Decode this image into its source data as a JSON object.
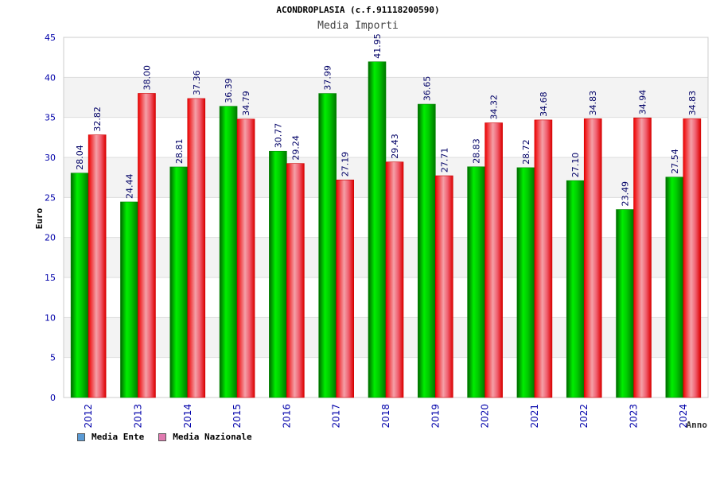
{
  "chart_data": {
    "type": "bar",
    "title": "ACONDROPLASIA (c.f.91118200590)",
    "subtitle": "Media Importi",
    "xlabel": "Anno",
    "ylabel": "Euro",
    "ylim": [
      0,
      45
    ],
    "yticks": [
      0,
      5,
      10,
      15,
      20,
      25,
      30,
      35,
      40,
      45
    ],
    "grid": true,
    "legend_position": "bottom-left",
    "categories": [
      "2012",
      "2013",
      "2014",
      "2015",
      "2016",
      "2017",
      "2018",
      "2019",
      "2020",
      "2021",
      "2022",
      "2023",
      "2024"
    ],
    "series": [
      {
        "name": "Media Ente",
        "color": "#00cc00",
        "legend_color": "#5b9bd5",
        "values": [
          28.04,
          24.44,
          28.81,
          36.39,
          30.77,
          37.99,
          41.95,
          36.65,
          28.83,
          28.72,
          27.1,
          23.49,
          27.54
        ],
        "labels": [
          "28.04",
          "24.44",
          "28.81",
          "36.39",
          "30.77",
          "37.99",
          "41.95",
          "36.65",
          "28.83",
          "28.72",
          "27.10",
          "23.49",
          "27.54"
        ]
      },
      {
        "name": "Media Nazionale",
        "color": "#ff2222",
        "legend_color": "#e07ab0",
        "values": [
          32.82,
          38.0,
          37.36,
          34.79,
          29.24,
          27.19,
          29.43,
          27.71,
          34.32,
          34.68,
          34.83,
          34.94,
          34.83
        ],
        "labels": [
          "32.82",
          "38.00",
          "37.36",
          "34.79",
          "29.24",
          "27.19",
          "29.43",
          "27.71",
          "34.32",
          "34.68",
          "34.83",
          "34.94",
          "34.83"
        ]
      }
    ]
  }
}
